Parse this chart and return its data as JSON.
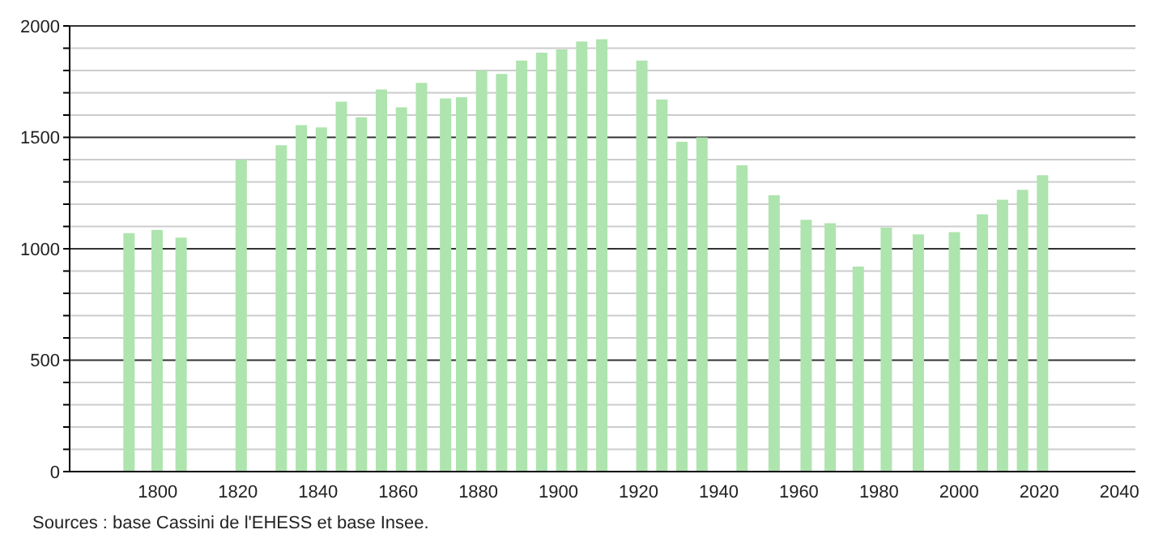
{
  "chart_data": {
    "type": "bar",
    "x": [
      1793,
      1800,
      1806,
      1821,
      1831,
      1836,
      1841,
      1846,
      1851,
      1856,
      1861,
      1866,
      1872,
      1876,
      1881,
      1886,
      1891,
      1896,
      1901,
      1906,
      1911,
      1921,
      1926,
      1931,
      1936,
      1946,
      1954,
      1962,
      1968,
      1975,
      1982,
      1990,
      1999,
      2006,
      2011,
      2016,
      2021
    ],
    "values": [
      1070,
      1085,
      1050,
      1400,
      1465,
      1555,
      1545,
      1660,
      1590,
      1715,
      1635,
      1745,
      1675,
      1680,
      1800,
      1785,
      1845,
      1880,
      1895,
      1930,
      1940,
      1845,
      1670,
      1480,
      1500,
      1375,
      1240,
      1130,
      1115,
      920,
      1095,
      1065,
      1075,
      1155,
      1220,
      1265,
      1330
    ],
    "color": "#aee4ae",
    "xlim": [
      1778,
      2044
    ],
    "xticks": [
      1800,
      1820,
      1840,
      1860,
      1880,
      1900,
      1920,
      1940,
      1960,
      1980,
      2000,
      2020,
      2040
    ],
    "ylim": [
      0,
      2000
    ],
    "yticks": [
      0,
      {
        "value": 100,
        "label": null
      },
      {
        "value": 200,
        "label": null
      },
      {
        "value": 300,
        "label": null
      },
      {
        "value": 400,
        "label": null
      },
      500,
      {
        "value": 600,
        "label": null
      },
      {
        "value": 700,
        "label": null
      },
      {
        "value": 800,
        "label": null
      },
      {
        "value": 900,
        "label": null
      },
      1000,
      {
        "value": 1100,
        "label": null
      },
      {
        "value": 1200,
        "label": null
      },
      {
        "value": 1300,
        "label": null
      },
      {
        "value": 1400,
        "label": null
      },
      1500,
      {
        "value": 1600,
        "label": null
      },
      {
        "value": 1700,
        "label": null
      },
      {
        "value": 1800,
        "label": null
      },
      {
        "value": 1900,
        "label": null
      },
      2000
    ],
    "grid": "y",
    "annotations": [
      "Sources : base Cassini de l'EHESS et base Insee."
    ]
  }
}
